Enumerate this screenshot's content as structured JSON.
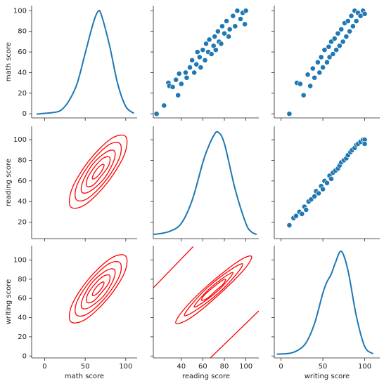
{
  "chart_data": [
    {
      "type": "kde",
      "color": "#1f77b4",
      "ylabel": "math score",
      "xlim": [
        -16,
        114
      ],
      "xticks": [
        0,
        50,
        100
      ],
      "ylim": [
        -4,
        105
      ],
      "yticks": [
        0,
        20,
        40,
        60,
        80,
        100
      ],
      "density_lim": [
        -0.001,
        0.0285
      ],
      "x": [
        -10,
        0,
        10,
        20,
        30,
        40,
        50,
        60,
        66,
        70,
        80,
        90,
        100,
        110
      ],
      "values": [
        0,
        0.0002,
        0.0004,
        0.001,
        0.0035,
        0.008,
        0.016,
        0.024,
        0.027,
        0.026,
        0.018,
        0.008,
        0.002,
        0.0002
      ]
    },
    {
      "type": "scatter",
      "color": "#1f77b4",
      "xlim": [
        14,
        112
      ],
      "xticks": [
        40,
        60,
        80,
        100
      ],
      "ylim": [
        -4,
        105
      ],
      "yticks": [
        0,
        20,
        40,
        60,
        80,
        100
      ],
      "x": [
        17,
        24,
        28,
        29,
        32,
        35,
        37,
        38,
        40,
        44,
        45,
        48,
        50,
        52,
        54,
        55,
        57,
        58,
        60,
        62,
        63,
        65,
        66,
        68,
        70,
        71,
        72,
        74,
        75,
        77,
        78,
        80,
        82,
        84,
        85,
        88,
        90,
        92,
        95,
        97,
        100,
        99
      ],
      "y": [
        0,
        8,
        30,
        27,
        26,
        33,
        18,
        39,
        29,
        40,
        35,
        45,
        52,
        40,
        48,
        60,
        55,
        45,
        62,
        52,
        68,
        60,
        72,
        58,
        66,
        75,
        62,
        80,
        70,
        68,
        85,
        78,
        90,
        75,
        82,
        95,
        85,
        100,
        92,
        98,
        100,
        87
      ]
    },
    {
      "type": "scatter",
      "color": "#1f77b4",
      "xlim": [
        -8,
        118
      ],
      "xticks": [
        0,
        50,
        100
      ],
      "ylim": [
        -4,
        105
      ],
      "yticks": [
        0,
        20,
        40,
        60,
        80,
        100
      ],
      "x": [
        10,
        19,
        23,
        27,
        32,
        35,
        38,
        40,
        44,
        46,
        48,
        50,
        52,
        55,
        57,
        58,
        60,
        62,
        64,
        66,
        68,
        70,
        72,
        74,
        76,
        78,
        80,
        82,
        84,
        86,
        88,
        90,
        92,
        95,
        98,
        100
      ],
      "y": [
        0,
        30,
        29,
        18,
        38,
        27,
        44,
        35,
        50,
        40,
        55,
        45,
        62,
        50,
        65,
        55,
        70,
        58,
        73,
        62,
        78,
        66,
        82,
        70,
        88,
        75,
        90,
        80,
        95,
        85,
        100,
        90,
        98,
        95,
        100,
        97
      ]
    },
    {
      "type": "kde2d",
      "color": "#ff0000",
      "ylabel": "reading score",
      "xlim": [
        -16,
        114
      ],
      "xticks": [
        0,
        50,
        100
      ],
      "ylim": [
        4,
        113
      ],
      "yticks": [
        20,
        40,
        60,
        80,
        100
      ],
      "contours": [
        {
          "closed": true,
          "x": [
            100,
            82,
            55,
            34,
            32,
            50,
            77,
            98
          ],
          "y": [
            103,
            101,
            80,
            53,
            35,
            37,
            58,
            85
          ]
        },
        {
          "closed": true,
          "x": [
            93,
            79,
            57,
            40,
            39,
            53,
            75,
            92
          ],
          "y": [
            96,
            95,
            78,
            56,
            42,
            43,
            60,
            82
          ]
        },
        {
          "closed": true,
          "x": [
            86,
            76,
            59,
            47,
            46,
            56,
            73,
            85
          ],
          "y": [
            89,
            88,
            76,
            59,
            49,
            50,
            62,
            79
          ]
        },
        {
          "closed": true,
          "x": [
            80,
            72,
            62,
            53,
            52,
            60,
            70,
            79
          ],
          "y": [
            83,
            82,
            74,
            63,
            55,
            56,
            65,
            75
          ]
        },
        {
          "closed": true,
          "x": [
            73,
            69,
            64,
            60,
            59,
            63,
            68,
            72
          ],
          "y": [
            76,
            75,
            71,
            66,
            62,
            63,
            67,
            72
          ]
        }
      ]
    },
    {
      "type": "kde",
      "color": "#1f77b4",
      "xlim": [
        14,
        112
      ],
      "xticks": [
        40,
        60,
        80,
        100
      ],
      "ylim": [
        4,
        113
      ],
      "yticks": [
        20,
        40,
        60,
        80,
        100
      ],
      "density_lim": [
        -0.001,
        0.0285
      ],
      "x": [
        10,
        20,
        30,
        40,
        50,
        60,
        65,
        70,
        74,
        80,
        90,
        100,
        105,
        110
      ],
      "values": [
        0,
        0.0003,
        0.001,
        0.003,
        0.009,
        0.019,
        0.023,
        0.026,
        0.027,
        0.024,
        0.012,
        0.003,
        0.0008,
        0.0001
      ]
    },
    {
      "type": "scatter",
      "color": "#1f77b4",
      "xlim": [
        -8,
        118
      ],
      "xticks": [
        0,
        50,
        100
      ],
      "ylim": [
        4,
        113
      ],
      "yticks": [
        20,
        40,
        60,
        80,
        100
      ],
      "x": [
        10,
        15,
        18,
        22,
        25,
        28,
        30,
        33,
        36,
        40,
        42,
        45,
        48,
        50,
        52,
        55,
        58,
        60,
        62,
        65,
        68,
        70,
        72,
        75,
        78,
        80,
        83,
        85,
        88,
        90,
        92,
        95,
        98,
        100,
        100
      ],
      "y": [
        17,
        24,
        26,
        30,
        28,
        35,
        32,
        40,
        42,
        45,
        50,
        48,
        55,
        52,
        60,
        58,
        65,
        62,
        68,
        70,
        72,
        75,
        78,
        80,
        82,
        85,
        88,
        90,
        92,
        95,
        96,
        98,
        100,
        100,
        96
      ]
    },
    {
      "type": "kde2d",
      "color": "#ff0000",
      "xlabel": "math score",
      "ylabel": "writing score",
      "xlim": [
        -16,
        114
      ],
      "xticks": [
        0,
        50,
        100
      ],
      "ylim": [
        -2,
        115
      ],
      "yticks": [
        0,
        20,
        40,
        60,
        80,
        100
      ],
      "contours": [
        {
          "closed": true,
          "x": [
            100,
            82,
            55,
            34,
            32,
            50,
            77,
            98
          ],
          "y": [
            104,
            102,
            81,
            54,
            36,
            38,
            59,
            86
          ]
        },
        {
          "closed": true,
          "x": [
            93,
            79,
            57,
            40,
            39,
            53,
            75,
            92
          ],
          "y": [
            97,
            96,
            79,
            57,
            43,
            44,
            61,
            83
          ]
        },
        {
          "closed": true,
          "x": [
            86,
            76,
            59,
            47,
            46,
            56,
            73,
            85
          ],
          "y": [
            90,
            89,
            77,
            60,
            50,
            51,
            63,
            80
          ]
        },
        {
          "closed": true,
          "x": [
            80,
            72,
            62,
            53,
            52,
            60,
            70,
            79
          ],
          "y": [
            84,
            83,
            75,
            64,
            56,
            57,
            66,
            76
          ]
        },
        {
          "closed": true,
          "x": [
            73,
            69,
            64,
            60,
            59,
            63,
            68,
            72
          ],
          "y": [
            77,
            76,
            72,
            67,
            63,
            64,
            68,
            73
          ]
        }
      ]
    },
    {
      "type": "kde2d",
      "color": "#ff0000",
      "xlabel": "reading score",
      "xlim": [
        14,
        112
      ],
      "xticks": [
        40,
        60,
        80,
        100
      ],
      "ylim": [
        -2,
        115
      ],
      "yticks": [
        0,
        20,
        40,
        60,
        80,
        100
      ],
      "contours": [
        {
          "closed": true,
          "x": [
            105,
            92,
            65,
            42,
            35,
            49,
            75,
            99
          ],
          "y": [
            104,
            98,
            74,
            48,
            34,
            40,
            64,
            91
          ]
        },
        {
          "closed": true,
          "x": [
            97,
            86,
            66,
            49,
            43,
            54,
            74,
            91
          ],
          "y": [
            96,
            90,
            73,
            53,
            42,
            48,
            65,
            85
          ]
        },
        {
          "closed": true,
          "x": [
            88,
            81,
            68,
            56,
            52,
            59,
            73,
            84
          ],
          "y": [
            87,
            83,
            72,
            58,
            51,
            55,
            67,
            80
          ]
        },
        {
          "closed": true,
          "x": [
            81,
            77,
            69,
            61,
            59,
            64,
            72,
            79
          ],
          "y": [
            80,
            78,
            71,
            63,
            58,
            60,
            68,
            75
          ]
        },
        {
          "closed": false,
          "x": [
            14,
            51
          ],
          "y": [
            71,
            114
          ]
        },
        {
          "closed": false,
          "x": [
            67,
            112
          ],
          "y": [
            -2,
            47
          ]
        }
      ]
    },
    {
      "type": "kde",
      "color": "#1f77b4",
      "xlabel": "writing score",
      "xlim": [
        -8,
        118
      ],
      "xticks": [
        0,
        50,
        100
      ],
      "ylim": [
        -2,
        115
      ],
      "yticks": [
        0,
        20,
        40,
        60,
        80,
        100
      ],
      "density_lim": [
        -0.001,
        0.0285
      ],
      "x": [
        -5,
        10,
        20,
        30,
        40,
        50,
        55,
        60,
        65,
        72,
        80,
        90,
        100,
        110
      ],
      "values": [
        0,
        0.0002,
        0.001,
        0.003,
        0.008,
        0.016,
        0.019,
        0.021,
        0.024,
        0.027,
        0.022,
        0.01,
        0.002,
        0.0001
      ]
    }
  ]
}
